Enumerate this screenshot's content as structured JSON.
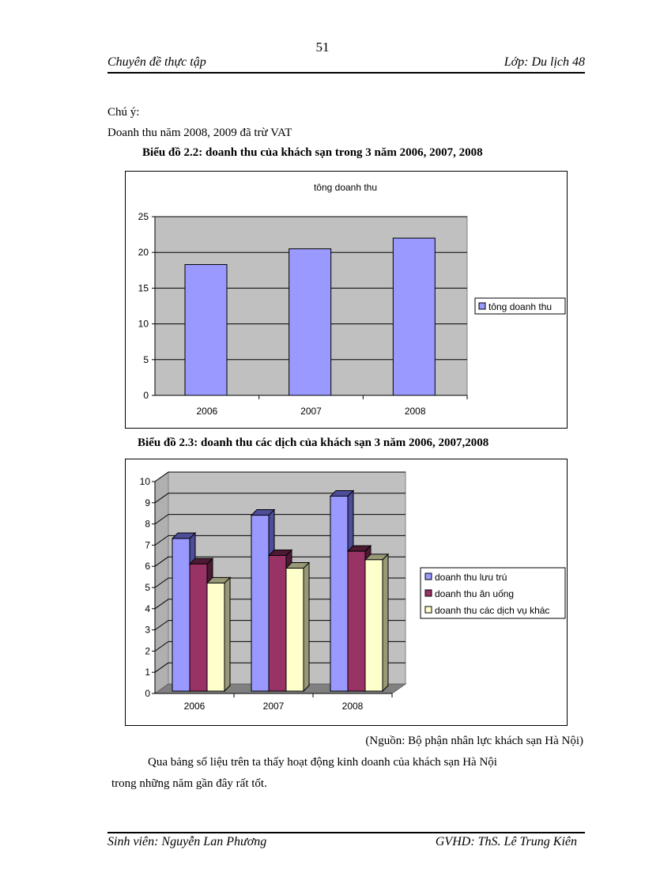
{
  "header": {
    "page_number": "51",
    "left": "Chuyên đề thực tập",
    "right": "Lớp: Du lịch 48"
  },
  "body": {
    "note_label": "Chú ý:",
    "note_text": "Doanh thu năm 2008, 2009 đã trừ VAT",
    "caption1": "Biểu đồ 2.2: doanh thu của khách sạn trong 3 năm 2006, 2007, 2008",
    "caption2": "Biểu đồ 2.3: doanh thu các dịch của khách sạn 3 năm 2006, 2007,2008",
    "source": "(Nguồn: Bộ phận nhân lực khách sạn Hà Nội)",
    "para_line1": "Qua bảng số liệu trên ta thấy hoạt động kinh doanh của khách sạn Hà Nội",
    "para_line2": "trong những năm gần đây rất tốt."
  },
  "footer": {
    "left": "Sinh viên: Nguyễn Lan Phương",
    "right": "GVHD: ThS. Lê Trung Kiên"
  },
  "chart_data": [
    {
      "type": "bar",
      "title": "tông doanh thu",
      "categories": [
        "2006",
        "2007",
        "2008"
      ],
      "series": [
        {
          "name": "tông doanh thu",
          "values": [
            18.3,
            20.5,
            22.0
          ],
          "color": "#9999ff"
        }
      ],
      "ylim": [
        0,
        25
      ],
      "yticks": [
        "0",
        "5",
        "10",
        "15",
        "20",
        "25"
      ],
      "grid": true,
      "legend": "right",
      "plot_bg": "#c0c0c0"
    },
    {
      "type": "bar",
      "style": "3d-clustered",
      "title": "",
      "categories": [
        "2006",
        "2007",
        "2008"
      ],
      "series": [
        {
          "name": "doanh thu lưu trú",
          "values": [
            7.2,
            8.3,
            9.2
          ],
          "color": "#9999ff"
        },
        {
          "name": "doanh thu ăn uống",
          "values": [
            6.0,
            6.4,
            6.6
          ],
          "color": "#993366"
        },
        {
          "name": "doanh thu các dịch vụ khác",
          "values": [
            5.1,
            5.8,
            6.2
          ],
          "color": "#ffffcc"
        }
      ],
      "ylim": [
        0,
        10
      ],
      "yticks": [
        "0",
        "1",
        "2",
        "3",
        "4",
        "5",
        "6",
        "7",
        "8",
        "9",
        "10"
      ],
      "grid": true,
      "legend": "right",
      "plot_bg": "#c0c0c0"
    }
  ]
}
